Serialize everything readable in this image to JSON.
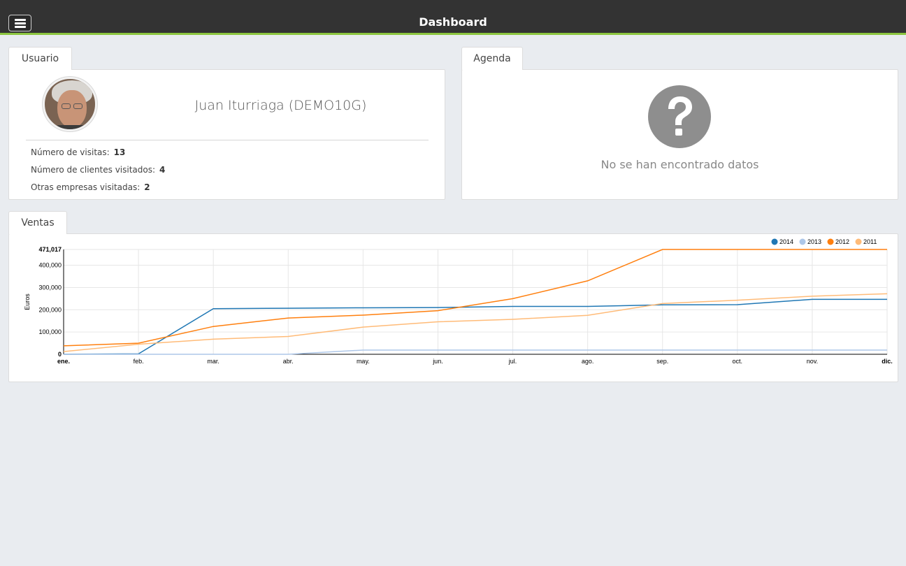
{
  "header": {
    "title": "Dashboard",
    "menu_icon": "hamburger-menu-icon"
  },
  "usuario": {
    "tab_label": "Usuario",
    "name": "Juan Iturriaga (DEMO10G)",
    "stats": [
      {
        "label": "Número de visitas:",
        "value": "13"
      },
      {
        "label": "Número de clientes visitados:",
        "value": "4"
      },
      {
        "label": "Otras empresas visitadas:",
        "value": "2"
      }
    ]
  },
  "agenda": {
    "tab_label": "Agenda",
    "icon": "question-mark-icon",
    "empty_text": "No se han encontrado datos"
  },
  "ventas": {
    "tab_label": "Ventas"
  },
  "chart_data": {
    "type": "line",
    "ylabel": "Euros",
    "xlabel": "",
    "ylim": [
      0,
      471017
    ],
    "yticks": [
      "0",
      "100,000",
      "200,000",
      "300,000",
      "400,000",
      "471,017"
    ],
    "ytick_values": [
      0,
      100000,
      200000,
      300000,
      400000,
      471017
    ],
    "categories": [
      "ene.",
      "feb.",
      "mar.",
      "abr.",
      "may.",
      "jun.",
      "jul.",
      "ago.",
      "sep.",
      "oct.",
      "nov.",
      "dic."
    ],
    "grid": true,
    "legend_position": "top-right",
    "series": [
      {
        "name": "2014",
        "color": "#1f77b4",
        "values": [
          0,
          2000,
          205000,
          207000,
          209000,
          210000,
          215000,
          215000,
          222000,
          223000,
          247000,
          247000
        ]
      },
      {
        "name": "2013",
        "color": "#aec7e8",
        "values": [
          0,
          0,
          0,
          0,
          19000,
          19000,
          19000,
          19000,
          19000,
          19000,
          19000,
          19000
        ]
      },
      {
        "name": "2012",
        "color": "#ff7f0e",
        "values": [
          38000,
          50000,
          125000,
          163000,
          176000,
          196000,
          250000,
          330000,
          471017,
          471017,
          471017,
          471017
        ]
      },
      {
        "name": "2011",
        "color": "#ffbb78",
        "values": [
          12000,
          45000,
          68000,
          80000,
          122000,
          146000,
          157000,
          175000,
          228000,
          243000,
          261000,
          272000
        ]
      }
    ]
  }
}
